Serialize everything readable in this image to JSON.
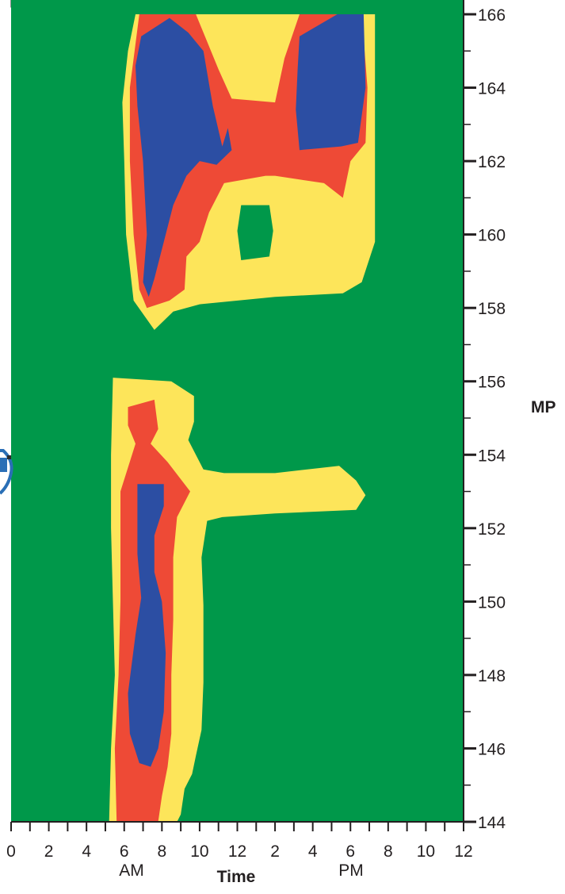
{
  "chart_data": {
    "type": "heatmap",
    "title": "",
    "xlabel": "Time",
    "ylabel": "MP",
    "x_period_labels": [
      "AM",
      "PM"
    ],
    "x_ticks": [
      {
        "hour": 0,
        "label": "0"
      },
      {
        "hour": 2,
        "label": "2"
      },
      {
        "hour": 4,
        "label": "4"
      },
      {
        "hour": 6,
        "label": "6"
      },
      {
        "hour": 8,
        "label": "8"
      },
      {
        "hour": 10,
        "label": "10"
      },
      {
        "hour": 12,
        "label": "12"
      },
      {
        "hour": 14,
        "label": "2"
      },
      {
        "hour": 16,
        "label": "4"
      },
      {
        "hour": 18,
        "label": "6"
      },
      {
        "hour": 20,
        "label": "8"
      },
      {
        "hour": 22,
        "label": "10"
      },
      {
        "hour": 24,
        "label": "12"
      }
    ],
    "xlim": [
      0,
      24
    ],
    "ylim": [
      144,
      166
    ],
    "y_ticks": [
      144,
      146,
      148,
      150,
      152,
      154,
      156,
      158,
      160,
      162,
      164,
      166
    ],
    "levels": [
      {
        "level": "free-flow",
        "color": "#00984a"
      },
      {
        "level": "light",
        "color": "#fde55a"
      },
      {
        "level": "heavy",
        "color": "#ee4a36"
      },
      {
        "level": "severe",
        "color": "#2c4ea3"
      }
    ],
    "regions": [
      {
        "level": "light",
        "points": [
          [
            6.6,
            166
          ],
          [
            19.3,
            166
          ],
          [
            19.3,
            159.8
          ],
          [
            18.6,
            158.7
          ],
          [
            17.6,
            158.4
          ],
          [
            14,
            158.3
          ],
          [
            10,
            158.1
          ],
          [
            8.6,
            157.9
          ],
          [
            7.6,
            157.4
          ],
          [
            6.5,
            158.2
          ],
          [
            6.1,
            160
          ],
          [
            6.0,
            162
          ],
          [
            5.9,
            163.6
          ],
          [
            6.2,
            165
          ]
        ]
      },
      {
        "level": "free-flow",
        "points": [
          [
            12.2,
            160.8
          ],
          [
            13.7,
            160.8
          ],
          [
            13.9,
            160.1
          ],
          [
            13.7,
            159.4
          ],
          [
            12.2,
            159.3
          ],
          [
            12.0,
            160.1
          ]
        ]
      },
      {
        "level": "light",
        "points": [
          [
            5.4,
            156.1
          ],
          [
            8.5,
            156
          ],
          [
            9.7,
            155.6
          ],
          [
            9.7,
            154.9
          ],
          [
            9.4,
            154.4
          ],
          [
            10.2,
            153.6
          ],
          [
            11.3,
            153.5
          ],
          [
            14,
            153.5
          ],
          [
            17.4,
            153.7
          ],
          [
            18.3,
            153.3
          ],
          [
            18.8,
            152.9
          ],
          [
            18.3,
            152.5
          ],
          [
            14,
            152.4
          ],
          [
            11.2,
            152.3
          ],
          [
            10.4,
            152.2
          ],
          [
            10.1,
            151.2
          ],
          [
            10.2,
            149.9
          ],
          [
            10.2,
            147.8
          ],
          [
            10.1,
            146.5
          ],
          [
            9.8,
            145.8
          ],
          [
            9.6,
            145.3
          ],
          [
            9.2,
            144.9
          ],
          [
            9.0,
            144.2
          ],
          [
            8.8,
            144
          ],
          [
            5.2,
            144
          ],
          [
            5.3,
            146
          ],
          [
            5.5,
            148
          ],
          [
            5.4,
            150
          ],
          [
            5.3,
            152
          ],
          [
            5.3,
            154
          ]
        ]
      },
      {
        "level": "heavy",
        "points": [
          [
            6.8,
            166
          ],
          [
            9.8,
            166
          ],
          [
            11,
            164.5
          ],
          [
            11.7,
            163.7
          ],
          [
            14,
            163.6
          ],
          [
            14.5,
            164.8
          ],
          [
            15.3,
            166
          ],
          [
            18.6,
            166
          ],
          [
            18.9,
            164
          ],
          [
            18.8,
            162.5
          ],
          [
            18,
            162
          ],
          [
            17.6,
            161
          ],
          [
            16.6,
            161.4
          ],
          [
            14,
            161.6
          ],
          [
            13.5,
            161.6
          ],
          [
            11.3,
            161.4
          ],
          [
            10.5,
            160.6
          ],
          [
            10.0,
            159.8
          ],
          [
            9.3,
            159.4
          ],
          [
            9.2,
            158.5
          ],
          [
            8.4,
            158.2
          ],
          [
            7.2,
            158
          ],
          [
            6.8,
            158.5
          ],
          [
            6.5,
            160
          ],
          [
            6.3,
            162
          ],
          [
            6.3,
            164
          ]
        ]
      },
      {
        "level": "heavy",
        "points": [
          [
            6.2,
            155.3
          ],
          [
            7.6,
            155.5
          ],
          [
            7.8,
            154.7
          ],
          [
            7.4,
            154.3
          ],
          [
            8.3,
            153.8
          ],
          [
            9.5,
            153
          ],
          [
            8.8,
            152.3
          ],
          [
            8.6,
            151.2
          ],
          [
            8.6,
            149.5
          ],
          [
            8.5,
            148
          ],
          [
            8.5,
            146.4
          ],
          [
            8.3,
            145.5
          ],
          [
            8.0,
            144.7
          ],
          [
            7.8,
            144
          ],
          [
            5.6,
            144
          ],
          [
            5.5,
            146
          ],
          [
            5.7,
            148
          ],
          [
            5.8,
            150
          ],
          [
            5.8,
            152
          ],
          [
            5.8,
            153
          ],
          [
            6.6,
            154.3
          ],
          [
            6.2,
            154.8
          ]
        ]
      },
      {
        "level": "severe",
        "points": [
          [
            6.9,
            165.4
          ],
          [
            8.4,
            165.9
          ],
          [
            9.4,
            165.5
          ],
          [
            10.2,
            165
          ],
          [
            10.7,
            163.5
          ],
          [
            11.2,
            162.4
          ],
          [
            11.5,
            162.9
          ],
          [
            11.7,
            162.3
          ],
          [
            10.9,
            161.9
          ],
          [
            10.0,
            162
          ],
          [
            9.3,
            161.6
          ],
          [
            8.6,
            160.8
          ],
          [
            8.2,
            160
          ],
          [
            7.6,
            158.8
          ],
          [
            7.3,
            158.3
          ],
          [
            7.0,
            158.7
          ],
          [
            7.2,
            160
          ],
          [
            7.0,
            162
          ],
          [
            6.7,
            163.5
          ],
          [
            6.6,
            164.6
          ]
        ]
      },
      {
        "level": "severe",
        "points": [
          [
            15.3,
            165.4
          ],
          [
            17.3,
            166
          ],
          [
            18.7,
            166
          ],
          [
            18.8,
            164
          ],
          [
            18.4,
            162.5
          ],
          [
            17.5,
            162.4
          ],
          [
            15.3,
            162.3
          ],
          [
            15.1,
            163.4
          ],
          [
            15.2,
            164.5
          ]
        ]
      },
      {
        "level": "severe",
        "points": [
          [
            6.7,
            153.2
          ],
          [
            8.1,
            153.2
          ],
          [
            8.1,
            152.6
          ],
          [
            7.6,
            151.8
          ],
          [
            7.6,
            150.8
          ],
          [
            8.0,
            150
          ],
          [
            8.2,
            148.6
          ],
          [
            8.1,
            147
          ],
          [
            7.8,
            146
          ],
          [
            7.4,
            145.5
          ],
          [
            6.8,
            145.6
          ],
          [
            6.3,
            146.4
          ],
          [
            6.2,
            147.5
          ],
          [
            6.6,
            149.1
          ],
          [
            6.9,
            150.1
          ],
          [
            6.7,
            151.3
          ],
          [
            6.7,
            152.3
          ]
        ]
      }
    ]
  }
}
